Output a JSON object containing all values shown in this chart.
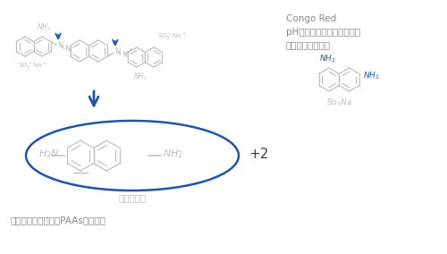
{
  "bg_color": "#ffffff",
  "gc": "#c0c0c0",
  "bc": "#2255aa",
  "dark": "#606060",
  "congo_line1": "Congo Red",
  "congo_line2": "pH指示薬としても使われる",
  "congo_line3": "アゾ染料の一つ。",
  "benzidine_label": "ベンジジン",
  "carcinogen_label": "最も発がん性の高いPAAsの一つ。",
  "plus2": "+2",
  "nh2": "NH₂",
  "h2n": "H₂N",
  "so3na_right": "SO₃⁻Na⁺",
  "so3na_left": "SO₃⁻Na⁺",
  "so3na_bot": "So₃Na",
  "n": "N"
}
